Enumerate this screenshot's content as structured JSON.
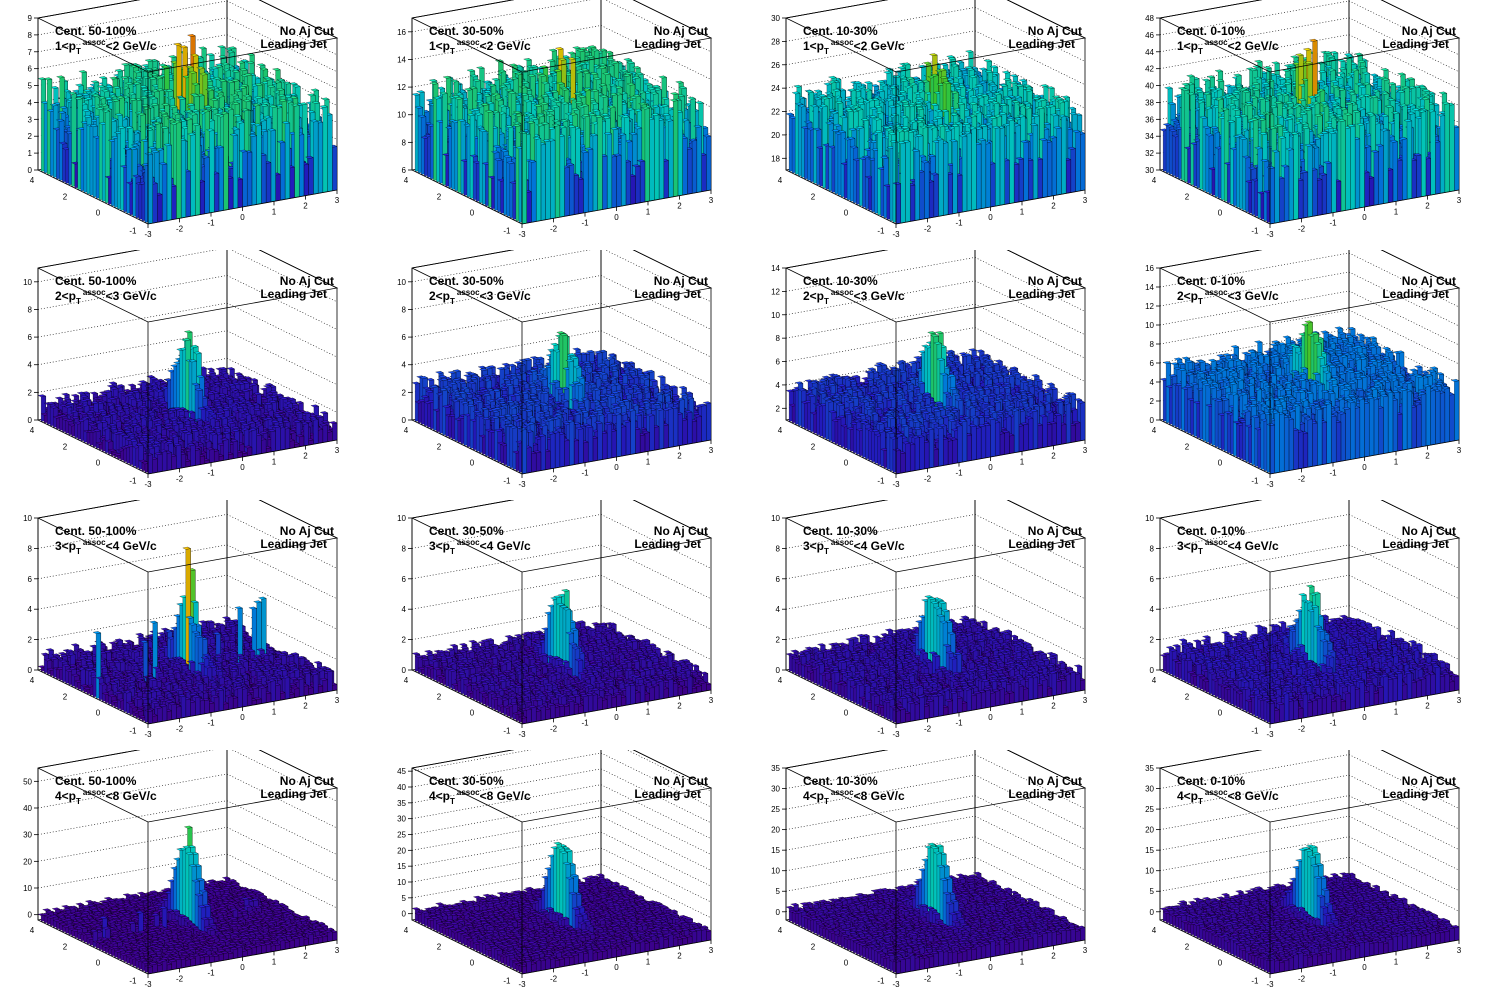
{
  "figure": {
    "rows": [
      {
        "pt_prefix": "1<p",
        "pt_suffix": "<2 GeV/c"
      },
      {
        "pt_prefix": "2<p",
        "pt_suffix": "<3 GeV/c"
      },
      {
        "pt_prefix": "3<p",
        "pt_suffix": "<4 GeV/c"
      },
      {
        "pt_prefix": "4<p",
        "pt_suffix": "<8 GeV/c"
      }
    ],
    "columns": [
      {
        "centrality": "Cent. 50-100%"
      },
      {
        "centrality": "Cent. 30-50%"
      },
      {
        "centrality": "Cent. 10-30%"
      },
      {
        "centrality": "Cent. 0-10%"
      }
    ],
    "pt_superscript": "assoc",
    "pt_subscript": "T",
    "aj_label": "No Aj Cut",
    "jet_label": "Leading Jet"
  },
  "chart_data": [
    {
      "type": "lego",
      "ylim": [
        0,
        9
      ],
      "z_ticks": [
        0,
        1,
        2,
        3,
        4,
        5,
        6,
        7,
        8,
        9
      ],
      "background": 3.5,
      "noise": 2.2,
      "peak": 7.5,
      "sidebar": 0
    },
    {
      "type": "lego",
      "ylim": [
        6,
        17
      ],
      "z_ticks": [
        6,
        8,
        10,
        12,
        14,
        16
      ],
      "background": 10.5,
      "noise": 2.5,
      "peak": 14,
      "sidebar": 0
    },
    {
      "type": "lego",
      "ylim": [
        17,
        30
      ],
      "z_ticks": [
        18,
        20,
        22,
        24,
        26,
        28,
        30
      ],
      "background": 22,
      "noise": 2.5,
      "peak": 27,
      "sidebar": 0
    },
    {
      "type": "lego",
      "ylim": [
        30,
        48
      ],
      "z_ticks": [
        30,
        32,
        34,
        36,
        38,
        40,
        42,
        44,
        46,
        48
      ],
      "background": 37,
      "noise": 4,
      "peak": 45,
      "sidebar": 0
    },
    {
      "type": "lego",
      "ylim": [
        0,
        11
      ],
      "z_ticks": [
        0,
        2,
        4,
        6,
        8,
        10
      ],
      "background": 1,
      "noise": 0.8,
      "peak": 8,
      "sidebar": 0
    },
    {
      "type": "lego",
      "ylim": [
        0,
        11
      ],
      "z_ticks": [
        0,
        2,
        4,
        6,
        8,
        10
      ],
      "background": 2.2,
      "noise": 1,
      "peak": 8,
      "sidebar": 0
    },
    {
      "type": "lego",
      "ylim": [
        1,
        14
      ],
      "z_ticks": [
        2,
        4,
        6,
        8,
        10,
        12,
        14
      ],
      "background": 3.5,
      "noise": 1.1,
      "peak": 10,
      "sidebar": 0
    },
    {
      "type": "lego",
      "ylim": [
        0,
        16
      ],
      "z_ticks": [
        0,
        2,
        4,
        6,
        8,
        10,
        12,
        14,
        16
      ],
      "background": 5,
      "noise": 1.5,
      "peak": 12,
      "sidebar": 0
    },
    {
      "type": "lego",
      "ylim": [
        0,
        10
      ],
      "z_ticks": [
        0,
        2,
        4,
        6,
        8,
        10
      ],
      "background": 0.8,
      "noise": 0.6,
      "peak": 6.5,
      "sidebar": 4
    },
    {
      "type": "lego",
      "ylim": [
        0,
        10
      ],
      "z_ticks": [
        0,
        2,
        4,
        6,
        8,
        10
      ],
      "background": 0.8,
      "noise": 0.5,
      "peak": 7,
      "sidebar": 0
    },
    {
      "type": "lego",
      "ylim": [
        0,
        10
      ],
      "z_ticks": [
        0,
        2,
        4,
        6,
        8,
        10
      ],
      "background": 1,
      "noise": 0.5,
      "peak": 7,
      "sidebar": 0
    },
    {
      "type": "lego",
      "ylim": [
        0,
        10
      ],
      "z_ticks": [
        0,
        2,
        4,
        6,
        8,
        10
      ],
      "background": 1.2,
      "noise": 0.6,
      "peak": 7,
      "sidebar": 0
    },
    {
      "type": "lego",
      "ylim": [
        -2,
        55
      ],
      "z_ticks": [
        0,
        10,
        20,
        30,
        40,
        50
      ],
      "background": 1,
      "noise": 1,
      "peak": 38,
      "sidebar": 8
    },
    {
      "type": "lego",
      "ylim": [
        -2,
        46
      ],
      "z_ticks": [
        0,
        5,
        10,
        15,
        20,
        25,
        30,
        35,
        40,
        45
      ],
      "background": 1,
      "noise": 1,
      "peak": 32,
      "sidebar": 0
    },
    {
      "type": "lego",
      "ylim": [
        -2,
        35
      ],
      "z_ticks": [
        0,
        5,
        10,
        15,
        20,
        25,
        30,
        35
      ],
      "background": 1,
      "noise": 0.8,
      "peak": 24,
      "sidebar": 0
    },
    {
      "type": "lego",
      "ylim": [
        -2,
        35
      ],
      "z_ticks": [
        0,
        5,
        10,
        15,
        20,
        25,
        30,
        35
      ],
      "background": 1,
      "noise": 0.8,
      "peak": 23,
      "sidebar": 0
    }
  ],
  "axes": {
    "x_ticks": [
      "-3",
      "-2",
      "-1",
      "0",
      "1",
      "2",
      "3"
    ],
    "y_ticks": [
      "-1",
      "0",
      "2",
      "4"
    ]
  }
}
